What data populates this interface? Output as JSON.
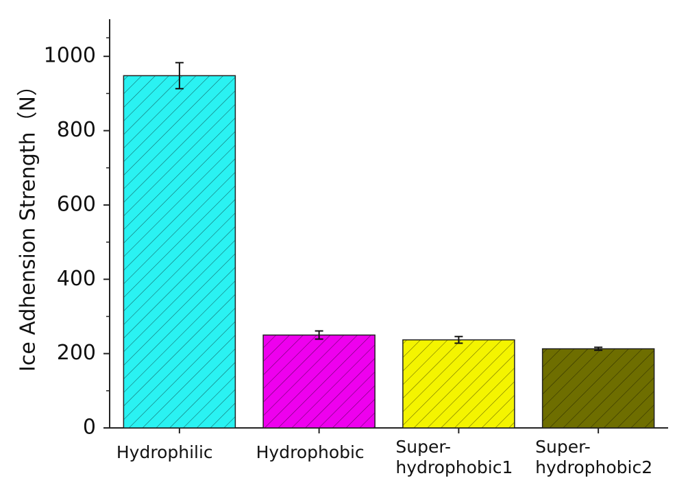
{
  "chart_data": {
    "type": "bar",
    "y_label": "Ice Adhension Strength（N）",
    "categories": [
      "Hydrophilic",
      "Hydrophobic",
      "Super-\nhydrophobic1",
      "Super-\nhydrophobic2"
    ],
    "values": [
      948,
      250,
      237,
      213
    ],
    "errors": [
      35,
      11,
      9,
      4
    ],
    "colors": [
      "#2af2f2",
      "#ee00ee",
      "#f4f400",
      "#6e6e00"
    ],
    "ylim": [
      0,
      1100
    ],
    "yticks": [
      0,
      200,
      400,
      600,
      800,
      1000
    ]
  }
}
